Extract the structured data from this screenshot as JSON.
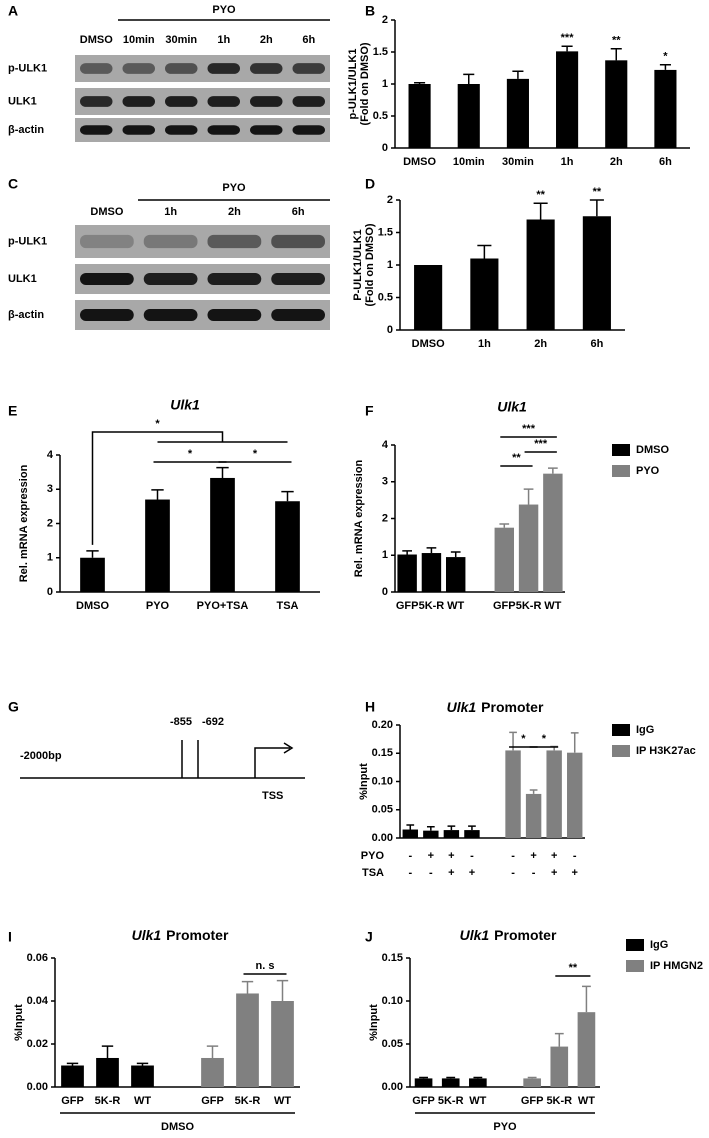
{
  "blots": [
    {
      "panel": "A",
      "group_label": "PYO",
      "lanes": [
        "DMSO",
        "10min",
        "30min",
        "1h",
        "2h",
        "6h"
      ],
      "rows": [
        "p-ULK1",
        "ULK1",
        "β-actin"
      ]
    },
    {
      "panel": "C",
      "group_label": "PYO",
      "lanes": [
        "DMSO",
        "1h",
        "2h",
        "6h"
      ],
      "rows": [
        "p-ULK1",
        "ULK1",
        "β-actin"
      ]
    }
  ],
  "diagram": {
    "panel": "G",
    "start": "-2000bp",
    "sites": [
      "-855",
      "-692"
    ],
    "tss": "TSS"
  },
  "chart_data": [
    {
      "type": "bar",
      "panel": "B",
      "y_label": [
        "p-ULK1/ULK1",
        "(Fold on DMSO)"
      ],
      "categories": [
        "DMSO",
        "10min",
        "30min",
        "1h",
        "2h",
        "6h"
      ],
      "values": [
        1.0,
        1.0,
        1.08,
        1.51,
        1.37,
        1.22
      ],
      "errors": [
        0.02,
        0.15,
        0.12,
        0.08,
        0.18,
        0.08
      ],
      "significance": [
        null,
        null,
        null,
        "***",
        "**",
        "*"
      ],
      "color": "#000000",
      "ylim": [
        0,
        2
      ],
      "yticks": [
        0,
        0.5,
        1,
        1.5,
        2
      ]
    },
    {
      "type": "bar",
      "panel": "D",
      "y_label": [
        "P-ULK1/ULK1",
        "(Fold on DMSO)"
      ],
      "categories": [
        "DMSO",
        "1h",
        "2h",
        "6h"
      ],
      "values": [
        1.0,
        1.1,
        1.7,
        1.75
      ],
      "errors": [
        null,
        0.2,
        0.25,
        0.25
      ],
      "significance": [
        null,
        null,
        "**",
        "**"
      ],
      "color": "#000000",
      "ylim": [
        0,
        2
      ],
      "yticks": [
        0,
        0.5,
        1,
        1.5,
        2
      ]
    },
    {
      "type": "bar",
      "panel": "E",
      "title": "Ulk1",
      "y_label": "Rel. mRNA expression",
      "categories": [
        "DMSO",
        "PYO",
        "PYO+TSA",
        "TSA"
      ],
      "values": [
        1.0,
        2.7,
        3.33,
        2.65
      ],
      "errors": [
        0.2,
        0.28,
        0.3,
        0.28
      ],
      "annotations": [
        "*",
        "*",
        "*"
      ],
      "color": "#000000",
      "ylim": [
        0,
        4
      ],
      "yticks": [
        0,
        1,
        2,
        3,
        4
      ]
    },
    {
      "type": "bar",
      "panel": "F",
      "title": "Ulk1",
      "y_label": "Rel. mRNA expression",
      "categories": [
        "GFP",
        "5K-R",
        "WT",
        "GFP",
        "5K-R",
        "WT"
      ],
      "series": [
        {
          "name": "DMSO",
          "color": "#000000",
          "values": [
            1.02,
            1.06,
            0.95,
            null,
            null,
            null
          ],
          "errors": [
            0.1,
            0.14,
            0.14,
            null,
            null,
            null
          ]
        },
        {
          "name": "PYO",
          "color": "#808080",
          "values": [
            null,
            null,
            null,
            1.75,
            2.38,
            3.22
          ],
          "errors": [
            null,
            null,
            null,
            0.1,
            0.42,
            0.15
          ]
        }
      ],
      "annotations": [
        "***",
        "**",
        "***"
      ],
      "legend": "right",
      "ylim": [
        0,
        4
      ],
      "yticks": [
        0,
        1,
        2,
        3,
        4
      ]
    },
    {
      "type": "bar",
      "panel": "H",
      "title": [
        "Ulk1",
        "Promoter"
      ],
      "y_label": "%Input",
      "categories": [
        null,
        null,
        null,
        null,
        null,
        null,
        null,
        null
      ],
      "series": [
        {
          "name": "IgG",
          "color": "#000000",
          "values": [
            0.015,
            0.013,
            0.014,
            0.014,
            null,
            null,
            null,
            null
          ],
          "errors": [
            0.008,
            0.007,
            0.007,
            0.007,
            null,
            null,
            null,
            null
          ]
        },
        {
          "name": "IP H3K27ac",
          "color": "#808080",
          "values": [
            null,
            null,
            null,
            null,
            0.155,
            0.078,
            0.155,
            0.151
          ],
          "errors": [
            null,
            null,
            null,
            null,
            0.032,
            0.007,
            0.007,
            0.035
          ]
        }
      ],
      "conditions": [
        {
          "name": "PYO",
          "signs": [
            "-",
            "+",
            "+",
            "-",
            "-",
            "+",
            "+",
            "-"
          ]
        },
        {
          "name": "TSA",
          "signs": [
            "-",
            "-",
            "+",
            "+",
            "-",
            "-",
            "+",
            "+"
          ]
        }
      ],
      "annotations": [
        "*",
        "*"
      ],
      "legend": "right",
      "ylim": [
        0,
        0.2
      ],
      "yticks": [
        {
          "value": 0,
          "label": "0.00"
        },
        0.05,
        {
          "value": 0.1,
          "label": "0.10"
        },
        0.15,
        {
          "value": 0.2,
          "label": "0.20"
        }
      ]
    },
    {
      "type": "bar",
      "panel": "I",
      "title": [
        "Ulk1",
        "Promoter"
      ],
      "y_label": "%Input",
      "categories": [
        "GFP",
        "5K-R",
        "WT",
        "GFP",
        "5K-R",
        "WT"
      ],
      "series": [
        {
          "color": "#000000",
          "values": [
            0.01,
            0.0135,
            0.01,
            null,
            null,
            null
          ],
          "errors": [
            0.001,
            0.0055,
            0.001,
            null,
            null,
            null
          ]
        },
        {
          "color": "#808080",
          "values": [
            null,
            null,
            null,
            0.0135,
            0.0435,
            0.04
          ],
          "errors": [
            null,
            null,
            null,
            0.0055,
            0.0055,
            0.0095
          ]
        }
      ],
      "group_label": "DMSO",
      "annotations": [
        "n. s"
      ],
      "ylim": [
        0,
        0.06
      ],
      "yticks": [
        {
          "value": 0,
          "label": "0.00"
        },
        0.02,
        0.04,
        0.06
      ]
    },
    {
      "type": "bar",
      "panel": "J",
      "title": [
        "Ulk1",
        "Promoter"
      ],
      "y_label": "%Input",
      "categories": [
        "GFP",
        "5K-R",
        "WT",
        "GFP",
        "5K-R",
        "WT"
      ],
      "series": [
        {
          "name": "IgG",
          "color": "#000000",
          "values": [
            0.01,
            0.01,
            0.01,
            null,
            null,
            null
          ],
          "errors": [
            0.001,
            0.001,
            0.001,
            null,
            null,
            null
          ]
        },
        {
          "name": "IP HMGN2",
          "color": "#808080",
          "values": [
            null,
            null,
            null,
            0.01,
            0.047,
            0.087
          ],
          "errors": [
            null,
            null,
            null,
            0.001,
            0.015,
            0.03
          ]
        }
      ],
      "group_label": "PYO",
      "annotations": [
        "**"
      ],
      "legend": "right",
      "ylim": [
        0,
        0.15
      ],
      "yticks": [
        {
          "value": 0,
          "label": "0.00"
        },
        0.05,
        {
          "value": 0.1,
          "label": "0.10"
        },
        0.15
      ]
    }
  ]
}
